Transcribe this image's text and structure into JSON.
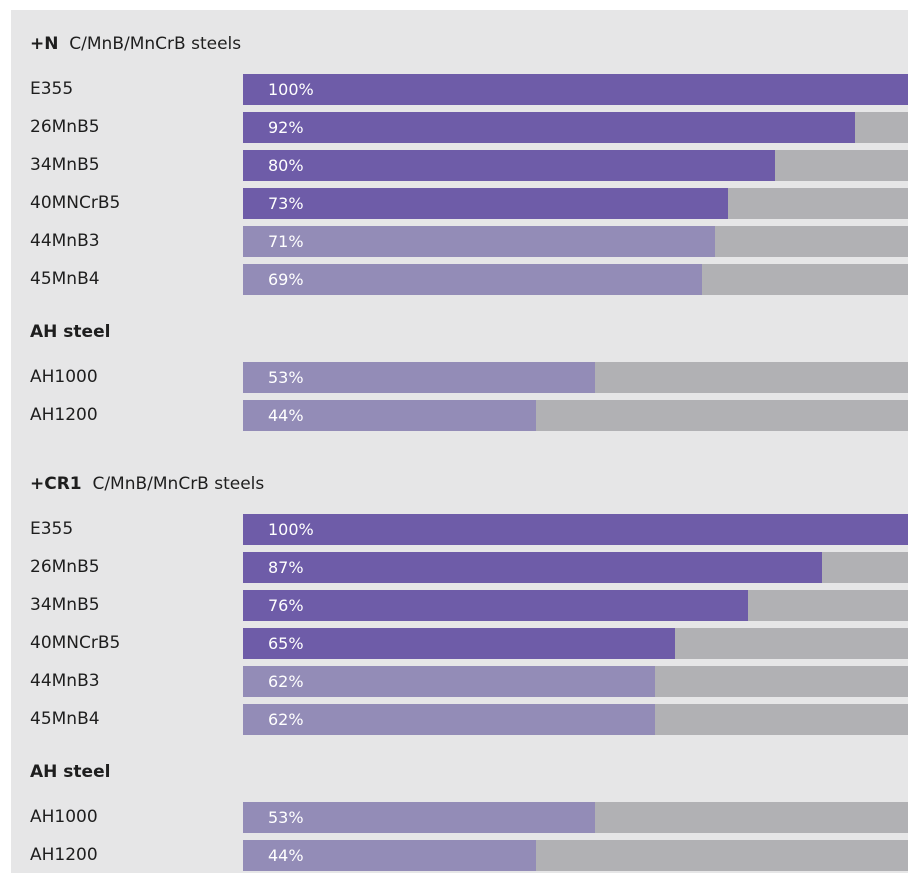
{
  "chart_data": {
    "type": "bar",
    "orientation": "horizontal",
    "value_format": "percent",
    "xlim": [
      0,
      100
    ],
    "colors": {
      "panel_background": "#e6e6e7",
      "track": "#b1b1b4",
      "boron_steel_bar": "#6e5ca8",
      "ah_steel_bar": "#938cb7",
      "value_text": "#ffffff"
    },
    "sections": [
      {
        "heading_bold": "+N",
        "heading_text": "C/MnB/MnCrB steels",
        "groups": [
          {
            "title": "",
            "bars": [
              {
                "label": "E355",
                "value": 100,
                "value_label": "100%",
                "style": "dark"
              },
              {
                "label": "26MnB5",
                "value": 92,
                "value_label": "92%",
                "style": "dark"
              },
              {
                "label": "34MnB5",
                "value": 80,
                "value_label": "80%",
                "style": "dark"
              },
              {
                "label": "40MNCrB5",
                "value": 73,
                "value_label": "73%",
                "style": "dark"
              },
              {
                "label": "44MnB3",
                "value": 71,
                "value_label": "71%",
                "style": "light"
              },
              {
                "label": "45MnB4",
                "value": 69,
                "value_label": "69%",
                "style": "light"
              }
            ]
          },
          {
            "title": "AH steel",
            "bars": [
              {
                "label": "AH1000",
                "value": 53,
                "value_label": "53%",
                "style": "light"
              },
              {
                "label": "AH1200",
                "value": 44,
                "value_label": "44%",
                "style": "light"
              }
            ]
          }
        ]
      },
      {
        "heading_bold": "+CR1",
        "heading_text": "C/MnB/MnCrB steels",
        "groups": [
          {
            "title": "",
            "bars": [
              {
                "label": "E355",
                "value": 100,
                "value_label": "100%",
                "style": "dark"
              },
              {
                "label": "26MnB5",
                "value": 87,
                "value_label": "87%",
                "style": "dark"
              },
              {
                "label": "34MnB5",
                "value": 76,
                "value_label": "76%",
                "style": "dark"
              },
              {
                "label": "40MNCrB5",
                "value": 65,
                "value_label": "65%",
                "style": "dark"
              },
              {
                "label": "44MnB3",
                "value": 62,
                "value_label": "62%",
                "style": "light"
              },
              {
                "label": "45MnB4",
                "value": 62,
                "value_label": "62%",
                "style": "light"
              }
            ]
          },
          {
            "title": "AH steel",
            "bars": [
              {
                "label": "AH1000",
                "value": 53,
                "value_label": "53%",
                "style": "light"
              },
              {
                "label": "AH1200",
                "value": 44,
                "value_label": "44%",
                "style": "light"
              }
            ]
          }
        ]
      }
    ]
  }
}
